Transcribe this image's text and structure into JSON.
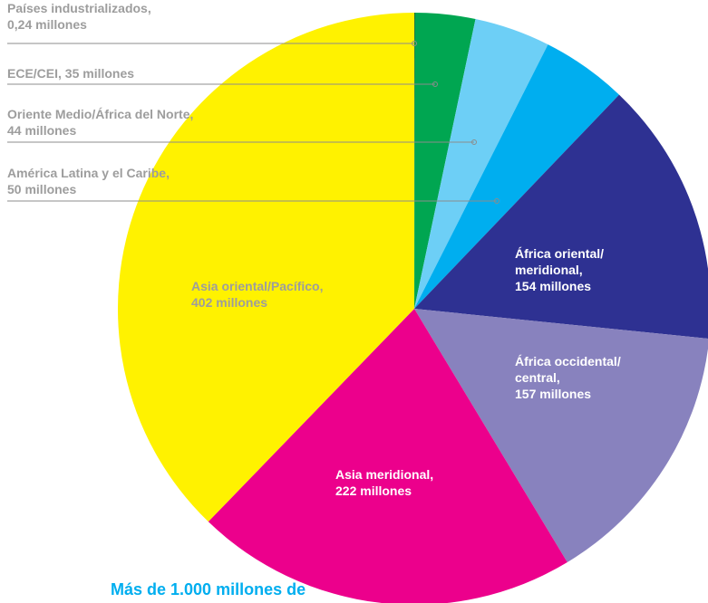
{
  "chart_data": {
    "type": "pie",
    "categories": [
      "Países industrializados,",
      "ECE/CEI,",
      "Oriente Medio/África del Norte,",
      "América Latina y el Caribe,",
      "África oriental/ meridional,",
      "África occidental/ central,",
      "Asia meridional,",
      "Asia oriental/Pacífico,"
    ],
    "values": [
      0.24,
      35,
      44,
      50,
      154,
      157,
      222,
      402
    ],
    "value_labels": [
      "0,24 millones",
      "35 millones",
      "44 millones",
      "50 millones",
      "154 millones",
      "157 millones",
      "222 millones",
      "402 millones"
    ],
    "colors": [
      "#3b1e10",
      "#00a651",
      "#6dcff6",
      "#00aeef",
      "#2e3192",
      "#8882be",
      "#ec008c",
      "#fff200"
    ],
    "note": "Más de 1.000 millones de"
  }
}
